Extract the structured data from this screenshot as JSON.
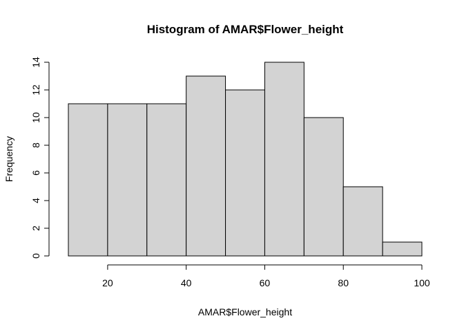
{
  "chart_data": {
    "type": "bar",
    "title": "Histogram of AMAR$Flower_height",
    "xlabel": "AMAR$Flower_height",
    "ylabel": "Frequency",
    "bins": [
      {
        "start": 10,
        "end": 20,
        "count": 11
      },
      {
        "start": 20,
        "end": 30,
        "count": 11
      },
      {
        "start": 30,
        "end": 40,
        "count": 11
      },
      {
        "start": 40,
        "end": 50,
        "count": 13
      },
      {
        "start": 50,
        "end": 60,
        "count": 12
      },
      {
        "start": 60,
        "end": 70,
        "count": 14
      },
      {
        "start": 70,
        "end": 80,
        "count": 10
      },
      {
        "start": 80,
        "end": 90,
        "count": 5
      },
      {
        "start": 90,
        "end": 100,
        "count": 1
      }
    ],
    "x_ticks": [
      20,
      40,
      60,
      80,
      100
    ],
    "y_ticks": [
      0,
      2,
      4,
      6,
      8,
      10,
      12,
      14
    ],
    "xlim": [
      10,
      100
    ],
    "ylim": [
      0,
      14
    ],
    "grid": false,
    "colors": {
      "bar_fill": "#d3d3d3",
      "bar_stroke": "#000000"
    }
  }
}
